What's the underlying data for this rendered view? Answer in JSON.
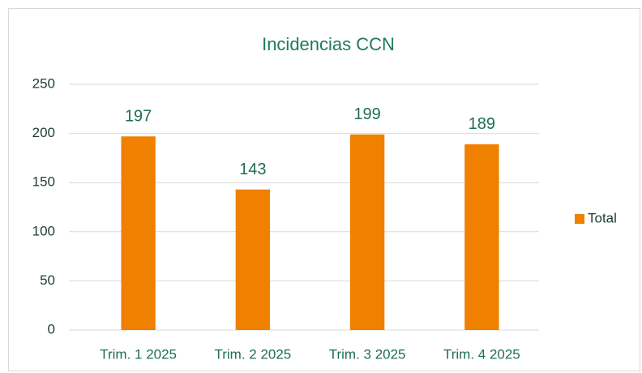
{
  "chart_data": {
    "type": "bar",
    "title": "Incidencias CCN",
    "categories": [
      "Trim. 1 2025",
      "Trim. 2 2025",
      "Trim. 3 2025",
      "Trim. 4 2025"
    ],
    "series": [
      {
        "name": "Total",
        "color": "#f08000",
        "values": [
          197,
          143,
          199,
          189
        ]
      }
    ],
    "ylim": [
      0,
      250
    ],
    "yticks": [
      0,
      50,
      100,
      150,
      200,
      250
    ],
    "grid": true,
    "legend": "right"
  }
}
